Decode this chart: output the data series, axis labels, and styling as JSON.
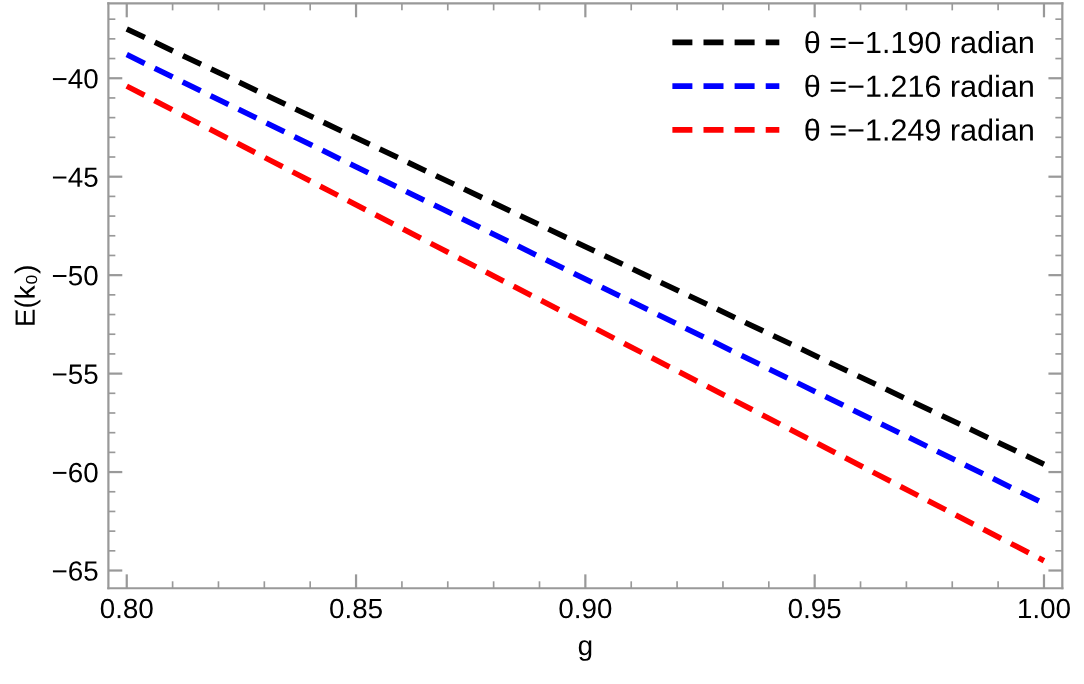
{
  "chart_data": {
    "type": "line",
    "xlabel": "g",
    "ylabel": "E(k₀)",
    "x": [
      0.8,
      1.0
    ],
    "series": [
      {
        "name": "θ =−1.190 radian",
        "color": "#000000",
        "values": [
          -37.5,
          -59.6
        ]
      },
      {
        "name": "θ =−1.216 radian",
        "color": "#0000ff",
        "values": [
          -38.8,
          -61.6
        ]
      },
      {
        "name": "θ =−1.249 radian",
        "color": "#ff0000",
        "values": [
          -40.4,
          -64.5
        ]
      }
    ],
    "xlim": [
      0.796,
      1.004
    ],
    "ylim": [
      -65.9,
      -36.2
    ],
    "xticks": [
      {
        "value": 0.8,
        "label": "0.80"
      },
      {
        "value": 0.85,
        "label": "0.85"
      },
      {
        "value": 0.9,
        "label": "0.90"
      },
      {
        "value": 0.95,
        "label": "0.95"
      },
      {
        "value": 1.0,
        "label": "1.00"
      }
    ],
    "yticks": [
      -65,
      -60,
      -55,
      -50,
      -45,
      -40
    ],
    "line_style": "dashed",
    "marker": "none",
    "grid": false,
    "legend": "top right"
  }
}
